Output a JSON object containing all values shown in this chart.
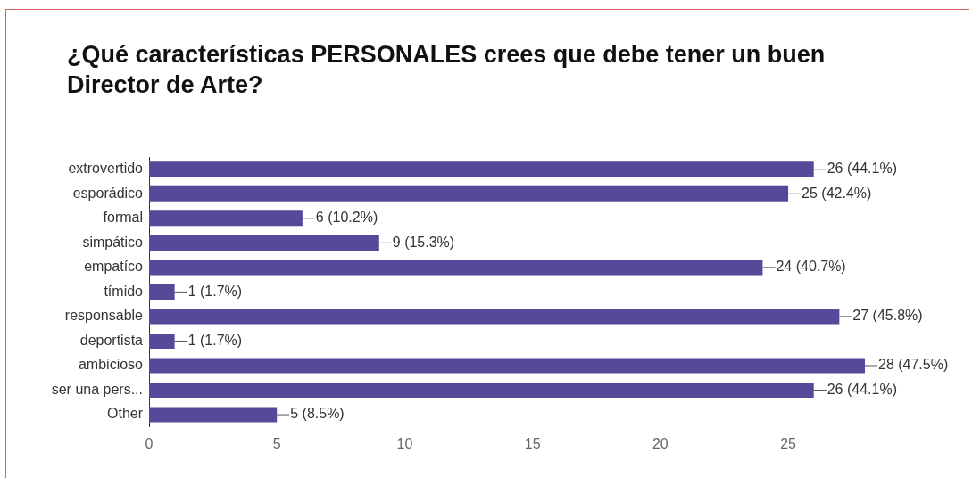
{
  "chart_data": {
    "type": "bar",
    "orientation": "horizontal",
    "title": "¿Qué características PERSONALES crees que debe tener un buen Director de Arte?",
    "categories": [
      "extrovertido",
      "esporádico",
      "formal",
      "simpático",
      "empatíco",
      "tímido",
      "responsable",
      "deportista",
      "ambicioso",
      "ser una pers...",
      "Other"
    ],
    "values": [
      26,
      25,
      6,
      9,
      24,
      1,
      27,
      1,
      28,
      26,
      5
    ],
    "value_labels": [
      "26 (44.1%)",
      "25 (42.4%)",
      "6 (10.2%)",
      "9 (15.3%)",
      "24 (40.7%)",
      "1 (1.7%)",
      "27 (45.8%)",
      "1 (1.7%)",
      "28 (47.5%)",
      "26 (44.1%)",
      "5 (8.5%)"
    ],
    "color": "#574899",
    "xlim": [
      0,
      28
    ],
    "xticks": [
      0,
      5,
      10,
      15,
      20,
      25
    ],
    "grid": false,
    "legend": false
  }
}
